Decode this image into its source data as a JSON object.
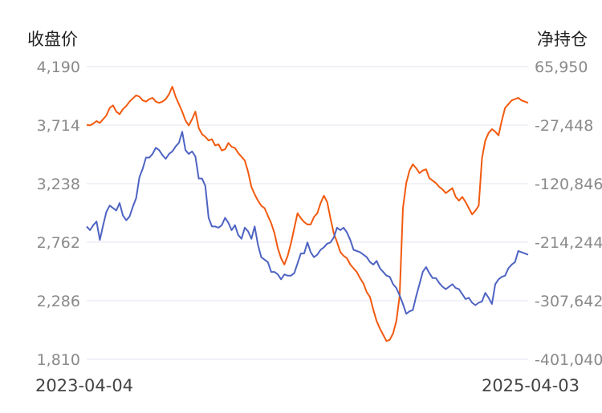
{
  "chart_data": {
    "type": "line",
    "ylabel_left": "收盘价",
    "ylabel_right": "净持仓",
    "x_start_label": "2023-04-04",
    "x_end_label": "2025-04-03",
    "y_left_ticks": [
      "4,190",
      "3,714",
      "3,238",
      "2,762",
      "2,286",
      "1,810"
    ],
    "y_right_ticks": [
      "65,950",
      "-27,448",
      "-120,846",
      "-214,244",
      "-307,642",
      "-401,040"
    ],
    "ylim_left": [
      1810,
      4190
    ],
    "ylim_right": [
      -401040,
      65950
    ],
    "grid": true,
    "series": [
      {
        "axis": "left",
        "color": "#4e63c2",
        "values": [
          2890,
          2860,
          2900,
          2930,
          2780,
          2900,
          3010,
          3060,
          3040,
          3020,
          3080,
          2980,
          2940,
          2970,
          3050,
          3120,
          3290,
          3360,
          3450,
          3450,
          3480,
          3530,
          3510,
          3470,
          3440,
          3480,
          3500,
          3540,
          3570,
          3660,
          3510,
          3480,
          3500,
          3460,
          3280,
          3280,
          3220,
          2960,
          2890,
          2890,
          2880,
          2900,
          2960,
          2920,
          2860,
          2900,
          2820,
          2790,
          2880,
          2850,
          2790,
          2890,
          2740,
          2640,
          2620,
          2600,
          2520,
          2520,
          2500,
          2460,
          2500,
          2490,
          2490,
          2510,
          2590,
          2670,
          2670,
          2760,
          2680,
          2640,
          2660,
          2700,
          2720,
          2750,
          2760,
          2800,
          2880,
          2860,
          2880,
          2840,
          2780,
          2700,
          2690,
          2680,
          2660,
          2640,
          2600,
          2580,
          2610,
          2550,
          2520,
          2490,
          2480,
          2420,
          2390,
          2330,
          2260,
          2180,
          2200,
          2210,
          2320,
          2420,
          2520,
          2560,
          2510,
          2470,
          2470,
          2430,
          2400,
          2380,
          2400,
          2420,
          2390,
          2380,
          2340,
          2300,
          2310,
          2270,
          2250,
          2270,
          2280,
          2350,
          2310,
          2260,
          2420,
          2460,
          2480,
          2490,
          2550,
          2580,
          2600,
          2690,
          2680,
          2670,
          2660
        ]
      },
      {
        "axis": "right",
        "color": "#f25a0f",
        "values": [
          -27000,
          -28000,
          -25000,
          -21000,
          -24000,
          -18000,
          -12000,
          0,
          4000,
          -6000,
          -10000,
          -2000,
          3000,
          10000,
          15000,
          20000,
          18000,
          12000,
          10000,
          14000,
          16000,
          10000,
          8000,
          10000,
          14000,
          22000,
          34000,
          18000,
          6000,
          -6000,
          -20000,
          -28000,
          -18000,
          -6000,
          -32000,
          -42000,
          -46000,
          -52000,
          -50000,
          -60000,
          -58000,
          -68000,
          -66000,
          -56000,
          -62000,
          -64000,
          -72000,
          -78000,
          -84000,
          -102000,
          -126000,
          -138000,
          -148000,
          -156000,
          -160000,
          -172000,
          -184000,
          -200000,
          -224000,
          -240000,
          -250000,
          -236000,
          -216000,
          -192000,
          -168000,
          -176000,
          -182000,
          -186000,
          -186000,
          -174000,
          -168000,
          -152000,
          -140000,
          -150000,
          -176000,
          -200000,
          -214000,
          -230000,
          -236000,
          -240000,
          -250000,
          -256000,
          -262000,
          -272000,
          -280000,
          -294000,
          -302000,
          -322000,
          -340000,
          -352000,
          -362000,
          -372000,
          -370000,
          -360000,
          -340000,
          -300000,
          -160000,
          -120000,
          -100000,
          -90000,
          -96000,
          -104000,
          -100000,
          -98000,
          -112000,
          -116000,
          -120000,
          -126000,
          -130000,
          -136000,
          -132000,
          -128000,
          -142000,
          -148000,
          -142000,
          -150000,
          -160000,
          -170000,
          -164000,
          -156000,
          -80000,
          -52000,
          -40000,
          -34000,
          -38000,
          -44000,
          -20000,
          0,
          6000,
          12000,
          14000,
          16000,
          12000,
          10000,
          8000
        ]
      }
    ]
  }
}
